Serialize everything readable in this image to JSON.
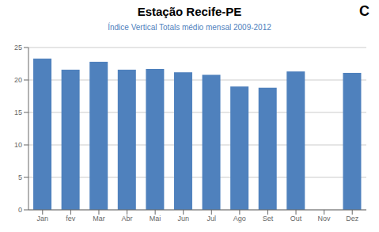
{
  "chart_data": {
    "type": "bar",
    "title": "Estação Recife-PE",
    "subtitle": "Índice Vertical Totals médio mensal 2009-2012",
    "annotations": [
      "C"
    ],
    "categories": [
      "Jan",
      "fev",
      "Mar",
      "Abr",
      "Mai",
      "Jun",
      "Jul",
      "Ago",
      "Set",
      "Out",
      "Nov",
      "Dez"
    ],
    "values": [
      23.3,
      21.6,
      22.8,
      21.6,
      21.7,
      21.2,
      20.8,
      19.0,
      18.8,
      21.3,
      0.0,
      21.1
    ],
    "color": "#4F81BD",
    "ylim": [
      0,
      25
    ],
    "yticks": [
      0,
      5,
      10,
      15,
      20,
      25
    ],
    "grid": true
  }
}
